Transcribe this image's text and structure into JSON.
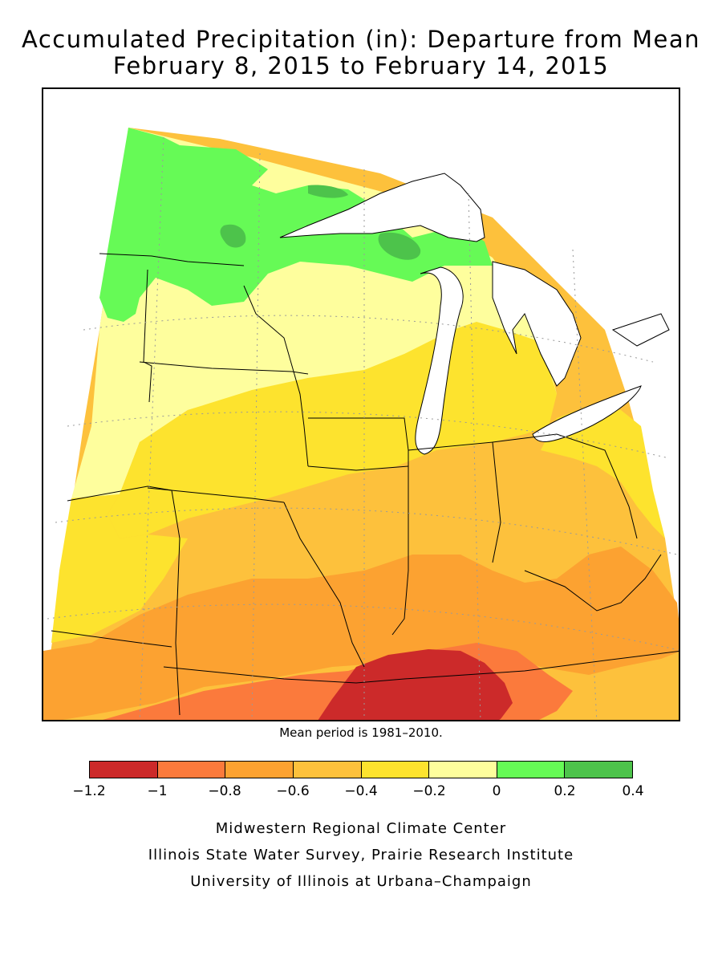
{
  "title": {
    "line1": "Accumulated Precipitation (in): Departure from Mean",
    "line2": "February 8, 2015 to February 14, 2015"
  },
  "note": "Mean period is 1981–2010.",
  "legend": {
    "colors": [
      "#cc2a2a",
      "#fb7a3c",
      "#fca231",
      "#fdc13c",
      "#fde32e",
      "#fefe9d",
      "#66fa56",
      "#4dc34b"
    ],
    "ticks": [
      "−1.2",
      "−1",
      "−0.8",
      "−0.6",
      "−0.4",
      "−0.2",
      "0",
      "0.2",
      "0.4"
    ]
  },
  "credits": [
    "Midwestern Regional Climate Center",
    "Illinois State Water Survey, Prairie Research Institute",
    "University of Illinois at Urbana–Champaign"
  ],
  "map": {
    "region": "Upper Midwest / Great Lakes",
    "water_color": "#ffffff",
    "boundary_color": "#000000",
    "grid": "dotted lat/lon graticule"
  }
}
